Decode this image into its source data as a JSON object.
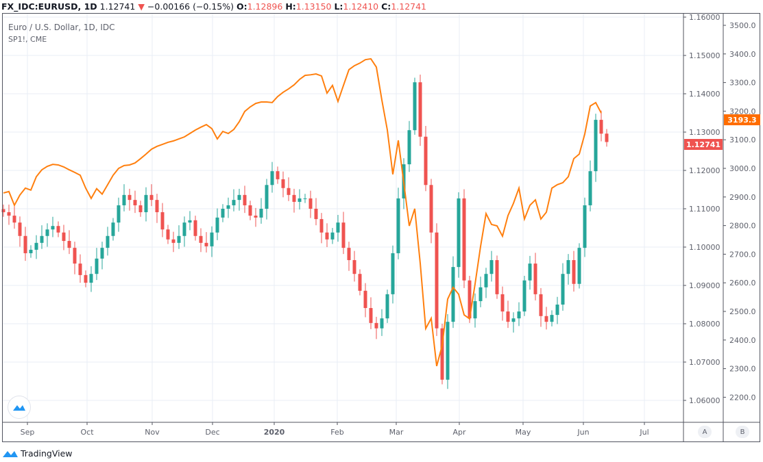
{
  "header": {
    "symbol": "FX_IDC:EURUSD, 1D",
    "last": "1.12741",
    "change": "−0.00166 (−0.15%)",
    "o_label": "O:",
    "o": "1.12896",
    "h_label": "H:",
    "h": "1.13150",
    "l_label": "L:",
    "l": "1.12410",
    "c_label": "C:",
    "c": "1.12741"
  },
  "legend": {
    "main": "Euro / U.S. Dollar, 1D, IDC",
    "overlay": "SP1!, CME"
  },
  "axis_buttons": {
    "a": "A",
    "b": "B"
  },
  "branding": "TradingView",
  "colors": {
    "up": "#26a69a",
    "down": "#ef5350",
    "overlay": "#ff7f0e",
    "grid": "#e8eef5"
  },
  "chart_data": {
    "type": "candlestick+line",
    "title": "Euro / U.S. Dollar, 1D, IDC",
    "x_ticks": [
      "Sep",
      "Oct",
      "Nov",
      "Dec",
      "2020",
      "Feb",
      "Mar",
      "Apr",
      "May",
      "Jun",
      "Jul"
    ],
    "y_axis_a": {
      "ticks": [
        "1.16000",
        "1.15000",
        "1.14000",
        "1.13000",
        "1.12000",
        "1.11000",
        "1.10000",
        "1.09000",
        "1.08000",
        "1.07000",
        "1.06000"
      ],
      "range": [
        1.0555,
        1.1609
      ],
      "last_label": "1.12741"
    },
    "y_axis_b": {
      "ticks": [
        "3500.0",
        "3400.0",
        "3300.0",
        "3200.0",
        "3100.0",
        "3000.0",
        "2900.0",
        "2800.0",
        "2700.0",
        "2600.0",
        "2500.0",
        "2400.0",
        "2300.0",
        "2200.0"
      ],
      "range": [
        2125,
        3544
      ],
      "last_label": "3193.3"
    },
    "series": [
      {
        "name": "EURUSD close",
        "kind": "candles",
        "values": [
          1.1091,
          1.1082,
          1.1064,
          1.1029,
          1.0984,
          1.0993,
          1.1011,
          1.1029,
          1.1046,
          1.1055,
          1.1038,
          1.1016,
          1.0998,
          1.0957,
          1.0927,
          1.0907,
          1.093,
          1.097,
          1.0998,
          1.1029,
          1.1064,
          1.1109,
          1.1136,
          1.1123,
          1.1109,
          1.1091,
          1.1136,
          1.1123,
          1.1091,
          1.1046,
          1.102,
          1.1011,
          1.1029,
          1.1064,
          1.107,
          1.1029,
          1.1011,
          1.1002,
          1.1038,
          1.1077,
          1.11,
          1.1109,
          1.1123,
          1.1136,
          1.1109,
          1.1082,
          1.1077,
          1.11,
          1.1162,
          1.1198,
          1.1177,
          1.1154,
          1.1136,
          1.1118,
          1.1127,
          1.1127,
          1.11,
          1.1073,
          1.1038,
          1.102,
          1.1038,
          1.1064,
          1.0998,
          1.0966,
          1.093,
          1.0886,
          1.0841,
          1.0802,
          1.0788,
          1.0814,
          1.0877,
          1.0984,
          1.1127,
          1.1216,
          1.1305,
          1.143,
          1.1288,
          1.1162,
          1.1038,
          1.0788,
          1.0654,
          1.0805,
          1.0948,
          1.1127,
          1.0913,
          1.0814,
          1.0859,
          1.0895,
          1.093,
          1.0966,
          1.0877,
          1.0832,
          1.0805,
          1.0814,
          1.0832,
          1.0913,
          1.0957,
          1.0877,
          1.082,
          1.0805,
          1.0823,
          1.085,
          1.093,
          1.0966,
          1.0904,
          1.0998,
          1.1109,
          1.1198,
          1.1332,
          1.1296,
          1.12741
        ]
      },
      {
        "name": "SP1!, CME",
        "kind": "line",
        "values": [
          2914,
          2919,
          2871,
          2907,
          2931,
          2924,
          2971,
          2995,
          3007,
          3014,
          3012,
          3005,
          2995,
          2986,
          2976,
          2931,
          2895,
          2929,
          2910,
          2943,
          2976,
          3000,
          3010,
          3012,
          3019,
          3034,
          3050,
          3067,
          3077,
          3084,
          3091,
          3096,
          3103,
          3110,
          3122,
          3134,
          3144,
          3153,
          3139,
          3103,
          3129,
          3122,
          3136,
          3163,
          3199,
          3215,
          3227,
          3232,
          3232,
          3230,
          3251,
          3266,
          3278,
          3292,
          3311,
          3325,
          3327,
          3330,
          3323,
          3263,
          3290,
          3234,
          3290,
          3345,
          3359,
          3368,
          3380,
          3383,
          3354,
          3239,
          3134,
          2979,
          3098,
          2950,
          2799,
          2859,
          2668,
          2440,
          2476,
          2309,
          2381,
          2543,
          2584,
          2560,
          2488,
          2474,
          2596,
          2727,
          2842,
          2804,
          2799,
          2763,
          2835,
          2878,
          2931,
          2823,
          2871,
          2890,
          2823,
          2847,
          2931,
          2943,
          2950,
          2971,
          3034,
          3050,
          3120,
          3218,
          3230,
          3193.3
        ]
      }
    ]
  }
}
